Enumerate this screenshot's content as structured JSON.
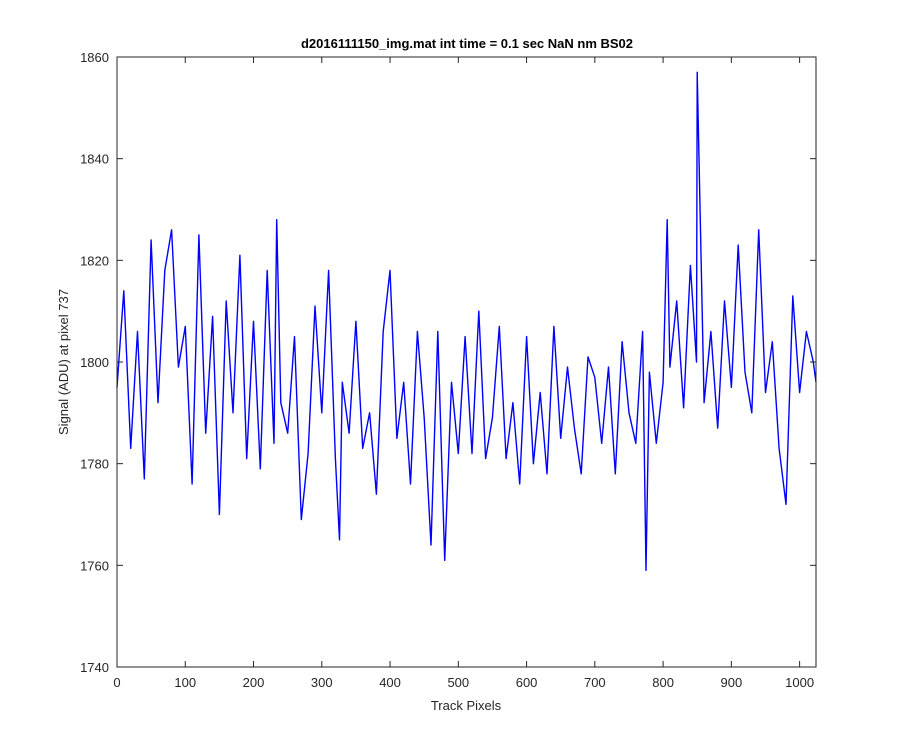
{
  "chart_data": {
    "type": "line",
    "title": "d2016111150_img.mat int time = 0.1 sec  NaN nm BS02",
    "xlabel": "Track Pixels",
    "ylabel": "Signal (ADU) at pixel 737",
    "xlim": [
      0,
      1024
    ],
    "ylim": [
      1740,
      1860
    ],
    "xticks": [
      0,
      100,
      200,
      300,
      400,
      500,
      600,
      700,
      800,
      900,
      1000
    ],
    "yticks": [
      1740,
      1760,
      1780,
      1800,
      1820,
      1840,
      1860
    ],
    "grid": false,
    "box": true,
    "series": [
      {
        "color": "#0000ff",
        "x": [
          0,
          10,
          20,
          30,
          40,
          50,
          60,
          70,
          80,
          90,
          100,
          110,
          120,
          130,
          140,
          150,
          160,
          170,
          180,
          190,
          200,
          210,
          220,
          230,
          234,
          240,
          250,
          260,
          270,
          280,
          290,
          300,
          310,
          320,
          326,
          330,
          340,
          350,
          360,
          370,
          380,
          390,
          400,
          410,
          420,
          430,
          440,
          450,
          460,
          470,
          480,
          490,
          500,
          510,
          520,
          530,
          540,
          550,
          560,
          570,
          580,
          590,
          600,
          610,
          620,
          630,
          640,
          650,
          660,
          670,
          680,
          690,
          700,
          710,
          720,
          730,
          740,
          750,
          760,
          770,
          775,
          780,
          790,
          800,
          806,
          810,
          820,
          830,
          840,
          849,
          850,
          860,
          870,
          880,
          890,
          900,
          910,
          920,
          930,
          940,
          950,
          960,
          970,
          980,
          990,
          1000,
          1010,
          1020,
          1024
        ],
        "y": [
          1795,
          1814,
          1783,
          1806,
          1777,
          1824,
          1792,
          1818,
          1826,
          1799,
          1807,
          1776,
          1825,
          1786,
          1809,
          1770,
          1812,
          1790,
          1821,
          1781,
          1808,
          1779,
          1818,
          1784,
          1828,
          1792,
          1786,
          1805,
          1769,
          1782,
          1811,
          1790,
          1818,
          1781,
          1765,
          1796,
          1786,
          1808,
          1783,
          1790,
          1774,
          1806,
          1818,
          1785,
          1796,
          1776,
          1806,
          1789,
          1764,
          1806,
          1761,
          1796,
          1782,
          1805,
          1782,
          1810,
          1781,
          1789,
          1807,
          1781,
          1792,
          1776,
          1805,
          1780,
          1794,
          1778,
          1807,
          1785,
          1799,
          1787,
          1778,
          1801,
          1797,
          1784,
          1799,
          1778,
          1804,
          1790,
          1784,
          1806,
          1759,
          1798,
          1784,
          1796,
          1828,
          1799,
          1812,
          1791,
          1819,
          1800,
          1857,
          1792,
          1806,
          1787,
          1812,
          1795,
          1823,
          1798,
          1790,
          1826,
          1794,
          1804,
          1783,
          1772,
          1813,
          1794,
          1806,
          1800,
          1796
        ]
      }
    ]
  }
}
